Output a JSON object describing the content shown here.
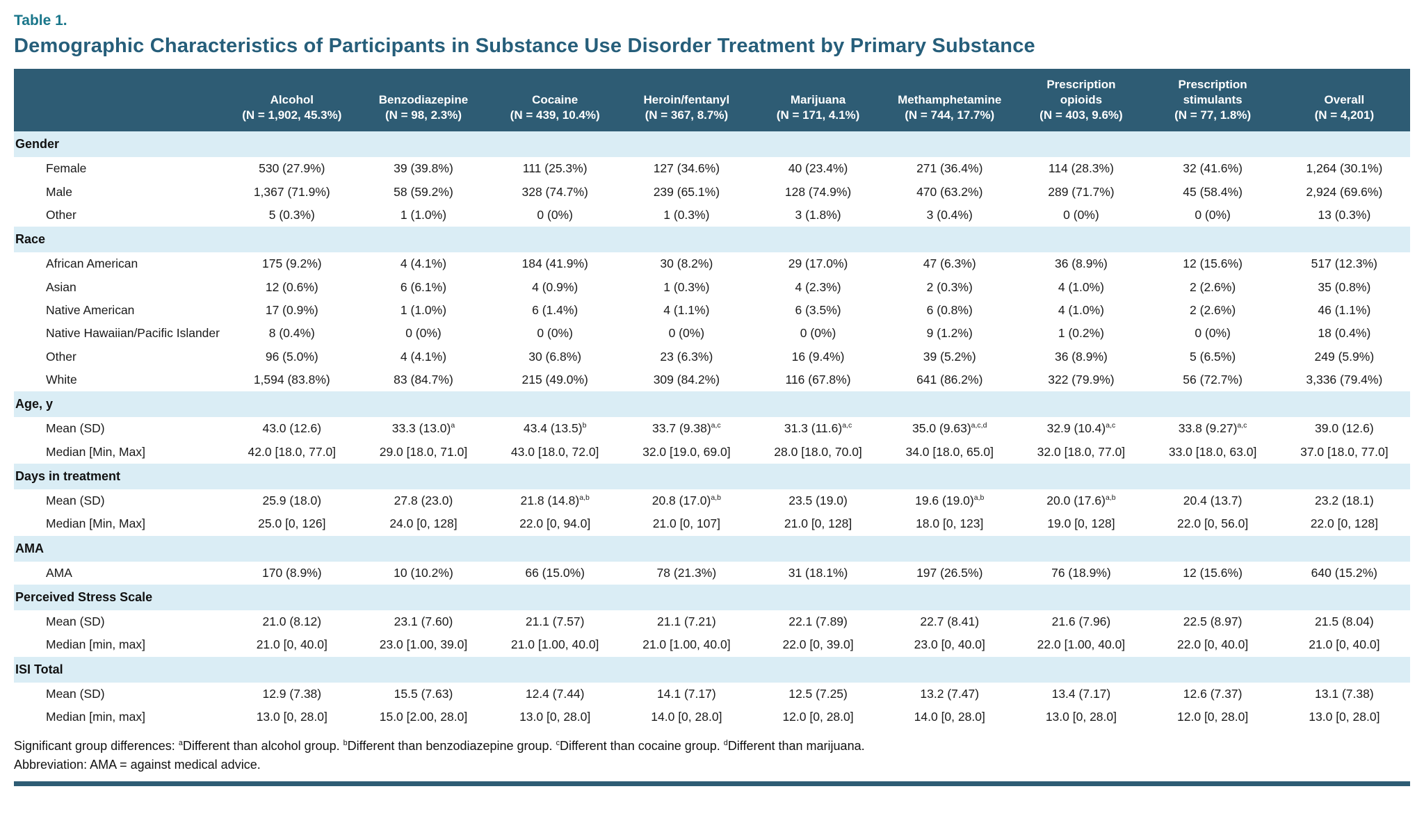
{
  "page": {
    "table_label": "Table 1.",
    "title": "Demographic Characteristics of Participants in Substance Use Disorder Treatment by Primary Substance"
  },
  "colors": {
    "header_bg": "#2e5c74",
    "section_band": "#daedf5",
    "table_label": "#19768a",
    "title": "#265e7a"
  },
  "table": {
    "columns": [
      {
        "lines": [
          "Alcohol"
        ],
        "n": "(N = 1,902, 45.3%)"
      },
      {
        "lines": [
          "Benzodiazepine"
        ],
        "n": "(N = 98, 2.3%)"
      },
      {
        "lines": [
          "Cocaine"
        ],
        "n": "(N = 439, 10.4%)"
      },
      {
        "lines": [
          "Heroin/fentanyl"
        ],
        "n": "(N = 367, 8.7%)"
      },
      {
        "lines": [
          "Marijuana"
        ],
        "n": "(N = 171, 4.1%)"
      },
      {
        "lines": [
          "Methamphetamine"
        ],
        "n": "(N = 744, 17.7%)"
      },
      {
        "lines": [
          "Prescription",
          "opioids"
        ],
        "n": "(N = 403, 9.6%)"
      },
      {
        "lines": [
          "Prescription",
          "stimulants"
        ],
        "n": "(N = 77, 1.8%)"
      },
      {
        "lines": [
          "Overall"
        ],
        "n": "(N = 4,201)"
      }
    ],
    "sections": [
      {
        "header": "Gender",
        "rows": [
          {
            "label": "Female",
            "values": [
              "530 (27.9%)",
              "39 (39.8%)",
              "111 (25.3%)",
              "127 (34.6%)",
              "40 (23.4%)",
              "271 (36.4%)",
              "114 (28.3%)",
              "32 (41.6%)",
              "1,264 (30.1%)"
            ]
          },
          {
            "label": "Male",
            "values": [
              "1,367 (71.9%)",
              "58 (59.2%)",
              "328 (74.7%)",
              "239 (65.1%)",
              "128 (74.9%)",
              "470 (63.2%)",
              "289 (71.7%)",
              "45 (58.4%)",
              "2,924 (69.6%)"
            ]
          },
          {
            "label": "Other",
            "values": [
              "5 (0.3%)",
              "1 (1.0%)",
              "0 (0%)",
              "1 (0.3%)",
              "3 (1.8%)",
              "3 (0.4%)",
              "0 (0%)",
              "0 (0%)",
              "13 (0.3%)"
            ]
          }
        ]
      },
      {
        "header": "Race",
        "rows": [
          {
            "label": "African American",
            "values": [
              "175 (9.2%)",
              "4 (4.1%)",
              "184 (41.9%)",
              "30 (8.2%)",
              "29 (17.0%)",
              "47 (6.3%)",
              "36 (8.9%)",
              "12 (15.6%)",
              "517 (12.3%)"
            ]
          },
          {
            "label": "Asian",
            "values": [
              "12 (0.6%)",
              "6 (6.1%)",
              "4 (0.9%)",
              "1 (0.3%)",
              "4 (2.3%)",
              "2 (0.3%)",
              "4 (1.0%)",
              "2 (2.6%)",
              "35 (0.8%)"
            ]
          },
          {
            "label": "Native American",
            "values": [
              "17 (0.9%)",
              "1 (1.0%)",
              "6 (1.4%)",
              "4 (1.1%)",
              "6 (3.5%)",
              "6 (0.8%)",
              "4 (1.0%)",
              "2 (2.6%)",
              "46 (1.1%)"
            ]
          },
          {
            "label": "Native Hawaiian/Pacific Islander",
            "values": [
              "8 (0.4%)",
              "0 (0%)",
              "0 (0%)",
              "0 (0%)",
              "0 (0%)",
              "9 (1.2%)",
              "1 (0.2%)",
              "0 (0%)",
              "18 (0.4%)"
            ]
          },
          {
            "label": "Other",
            "values": [
              "96 (5.0%)",
              "4 (4.1%)",
              "30 (6.8%)",
              "23 (6.3%)",
              "16 (9.4%)",
              "39 (5.2%)",
              "36 (8.9%)",
              "5 (6.5%)",
              "249 (5.9%)"
            ]
          },
          {
            "label": "White",
            "values": [
              "1,594 (83.8%)",
              "83 (84.7%)",
              "215 (49.0%)",
              "309 (84.2%)",
              "116 (67.8%)",
              "641 (86.2%)",
              "322 (79.9%)",
              "56 (72.7%)",
              "3,336 (79.4%)"
            ]
          }
        ]
      },
      {
        "header": "Age, y",
        "rows": [
          {
            "label": "Mean (SD)",
            "values": [
              "43.0 (12.6)",
              "33.3 (13.0)^{a}",
              "43.4 (13.5)^{b}",
              "33.7 (9.38)^{a,c}",
              "31.3 (11.6)^{a,c}",
              "35.0 (9.63)^{a,c,d}",
              "32.9 (10.4)^{a,c}",
              "33.8 (9.27)^{a,c}",
              "39.0 (12.6)"
            ]
          },
          {
            "label": "Median [Min, Max]",
            "values": [
              "42.0 [18.0, 77.0]",
              "29.0 [18.0, 71.0]",
              "43.0 [18.0, 72.0]",
              "32.0 [19.0, 69.0]",
              "28.0 [18.0, 70.0]",
              "34.0 [18.0, 65.0]",
              "32.0 [18.0, 77.0]",
              "33.0 [18.0, 63.0]",
              "37.0 [18.0, 77.0]"
            ]
          }
        ]
      },
      {
        "header": "Days in treatment",
        "rows": [
          {
            "label": "Mean (SD)",
            "values": [
              "25.9 (18.0)",
              "27.8 (23.0)",
              "21.8 (14.8)^{a,b}",
              "20.8 (17.0)^{a,b}",
              "23.5 (19.0)",
              "19.6 (19.0)^{a,b}",
              "20.0 (17.6)^{a,b}",
              "20.4 (13.7)",
              "23.2 (18.1)"
            ]
          },
          {
            "label": "Median [Min, Max]",
            "values": [
              "25.0 [0, 126]",
              "24.0 [0, 128]",
              "22.0 [0, 94.0]",
              "21.0 [0, 107]",
              "21.0 [0, 128]",
              "18.0 [0, 123]",
              "19.0 [0, 128]",
              "22.0 [0, 56.0]",
              "22.0 [0, 128]"
            ]
          }
        ]
      },
      {
        "header": "AMA",
        "rows": [
          {
            "label": "AMA",
            "values": [
              "170 (8.9%)",
              "10 (10.2%)",
              "66 (15.0%)",
              "78 (21.3%)",
              "31 (18.1%)",
              "197 (26.5%)",
              "76 (18.9%)",
              "12 (15.6%)",
              "640 (15.2%)"
            ]
          }
        ]
      },
      {
        "header": "Perceived Stress Scale",
        "rows": [
          {
            "label": "Mean (SD)",
            "values": [
              "21.0 (8.12)",
              "23.1 (7.60)",
              "21.1 (7.57)",
              "21.1 (7.21)",
              "22.1 (7.89)",
              "22.7 (8.41)",
              "21.6 (7.96)",
              "22.5 (8.97)",
              "21.5 (8.04)"
            ]
          },
          {
            "label": "Median [min, max]",
            "values": [
              "21.0 [0, 40.0]",
              "23.0 [1.00, 39.0]",
              "21.0 [1.00, 40.0]",
              "21.0 [1.00, 40.0]",
              "22.0 [0, 39.0]",
              "23.0 [0, 40.0]",
              "22.0 [1.00, 40.0]",
              "22.0 [0, 40.0]",
              "21.0 [0, 40.0]"
            ]
          }
        ]
      },
      {
        "header": "ISI Total",
        "rows": [
          {
            "label": "Mean (SD)",
            "values": [
              "12.9 (7.38)",
              "15.5 (7.63)",
              "12.4 (7.44)",
              "14.1 (7.17)",
              "12.5 (7.25)",
              "13.2 (7.47)",
              "13.4 (7.17)",
              "12.6 (7.37)",
              "13.1 (7.38)"
            ]
          },
          {
            "label": "Median [min, max]",
            "values": [
              "13.0 [0, 28.0]",
              "15.0 [2.00, 28.0]",
              "13.0 [0, 28.0]",
              "14.0 [0, 28.0]",
              "12.0 [0, 28.0]",
              "14.0 [0, 28.0]",
              "13.0 [0, 28.0]",
              "12.0 [0, 28.0]",
              "13.0 [0, 28.0]"
            ]
          }
        ]
      }
    ]
  },
  "footnotes": [
    "Significant group differences: ^{a}Different than alcohol group. ^{b}Different than benzodiazepine group. ^{c}Different than cocaine group. ^{d}Different than marijuana.",
    "Abbreviation: AMA = against medical advice."
  ]
}
